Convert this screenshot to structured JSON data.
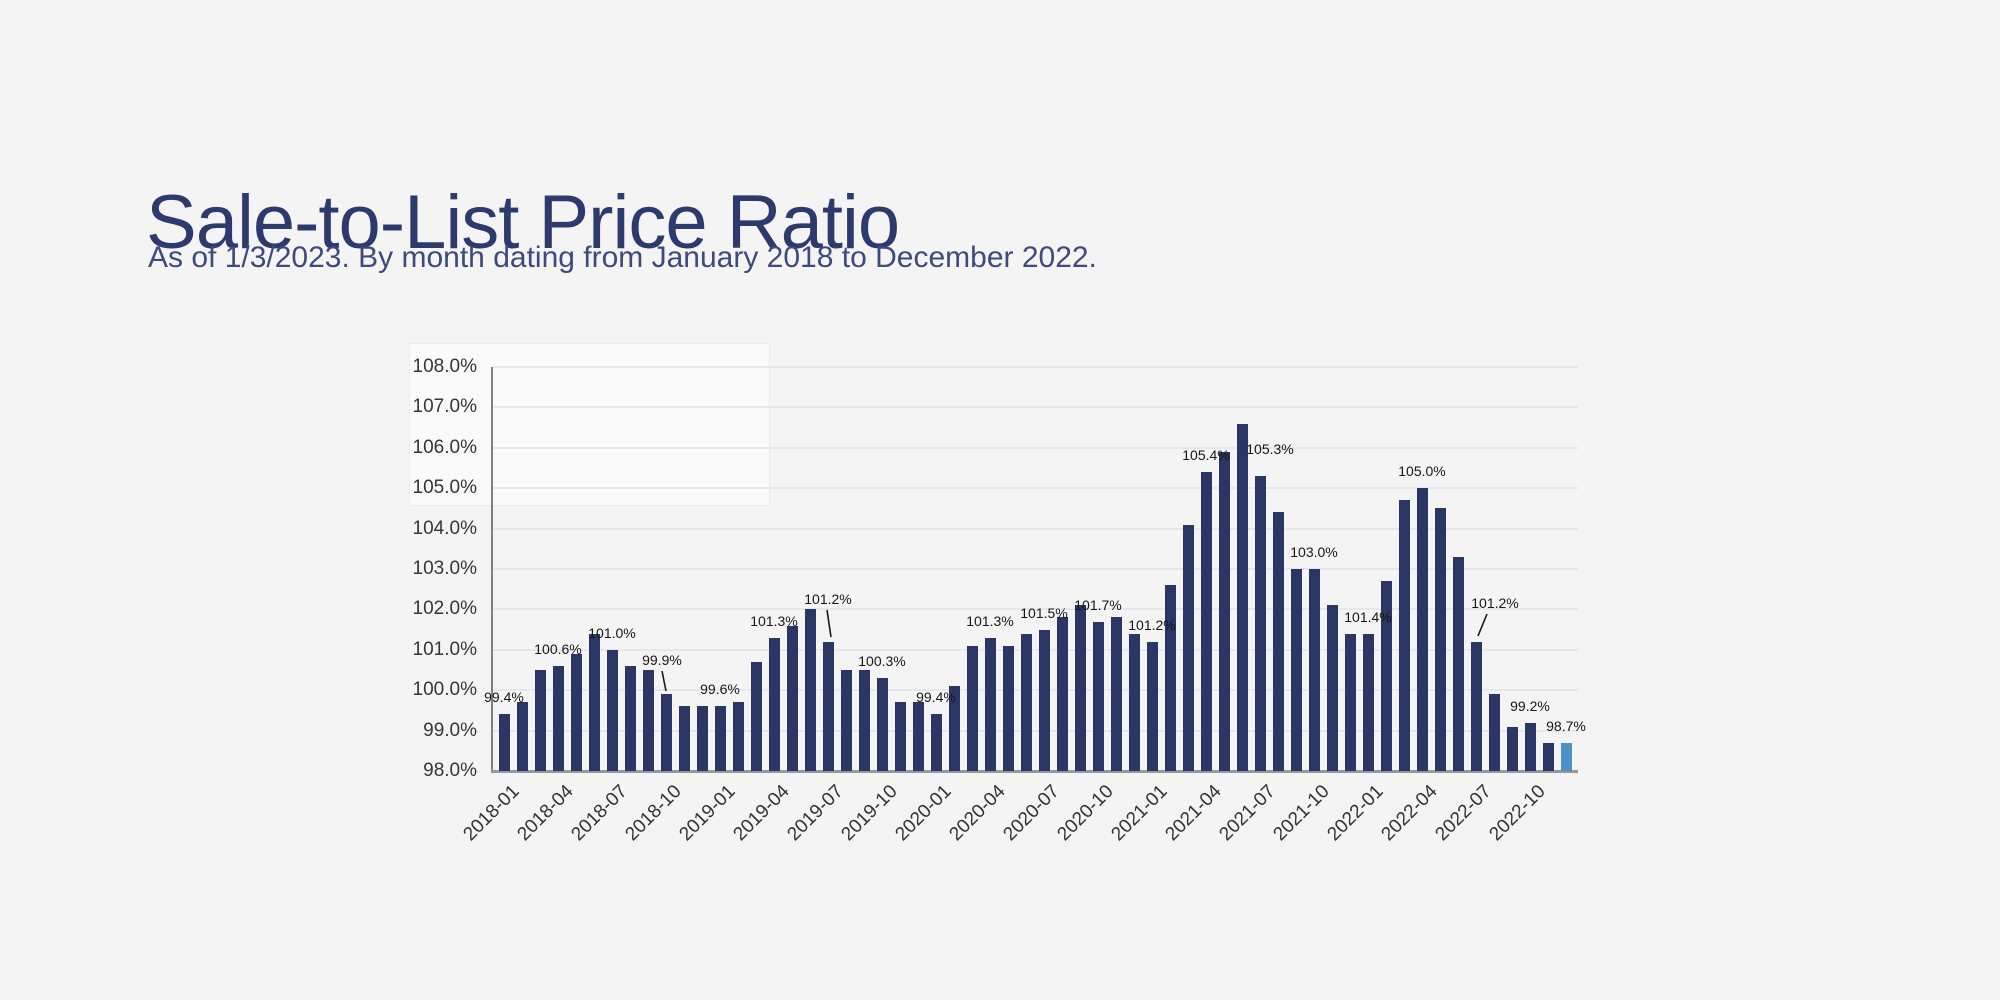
{
  "page": {
    "title": "Sale-to-List Price Ratio",
    "subtitle": "As of 1/3/2023. By month dating from January 2018 to December 2022."
  },
  "colors": {
    "background": "#f4f4f5",
    "title_color": "#2d3a6e",
    "subtitle_color": "#3d4a7e",
    "bar_color": "#2a3765",
    "highlight_bar_color": "#4d91c9",
    "gridline_color": "#e4e7ee",
    "axis_spine_color": "#7f7f85",
    "baseline_color": "#96969b",
    "tick_label_color": "#363636",
    "data_label_color": "#161616",
    "leader_line_color": "#1a1a1a"
  },
  "chart_data": {
    "type": "bar",
    "title": "Sale-to-List Price Ratio",
    "subtitle": "As of 1/3/2023. By month dating from January 2018 to December 2022.",
    "xlabel": "",
    "ylabel": "",
    "ylim": [
      98.0,
      108.0
    ],
    "ytick_step": 1.0,
    "grid": "horizontal",
    "legend": "none",
    "x": [
      "2018-01",
      "2018-02",
      "2018-03",
      "2018-04",
      "2018-05",
      "2018-06",
      "2018-07",
      "2018-08",
      "2018-09",
      "2018-10",
      "2018-11",
      "2018-12",
      "2019-01",
      "2019-02",
      "2019-03",
      "2019-04",
      "2019-05",
      "2019-06",
      "2019-07",
      "2019-08",
      "2019-09",
      "2019-10",
      "2019-11",
      "2019-12",
      "2020-01",
      "2020-02",
      "2020-03",
      "2020-04",
      "2020-05",
      "2020-06",
      "2020-07",
      "2020-08",
      "2020-09",
      "2020-10",
      "2020-11",
      "2020-12",
      "2021-01",
      "2021-02",
      "2021-03",
      "2021-04",
      "2021-05",
      "2021-06",
      "2021-07",
      "2021-08",
      "2021-09",
      "2021-10",
      "2021-11",
      "2021-12",
      "2022-01",
      "2022-02",
      "2022-03",
      "2022-04",
      "2022-05",
      "2022-06",
      "2022-07",
      "2022-08",
      "2022-09",
      "2022-10",
      "2022-11",
      "2022-12"
    ],
    "values": [
      99.4,
      99.7,
      100.5,
      100.6,
      100.9,
      101.4,
      101.0,
      100.6,
      100.5,
      99.9,
      99.6,
      99.6,
      99.6,
      99.7,
      100.7,
      101.3,
      101.6,
      102.0,
      101.2,
      100.5,
      100.5,
      100.3,
      99.7,
      99.7,
      99.4,
      100.1,
      101.1,
      101.3,
      101.1,
      101.4,
      101.5,
      101.8,
      102.1,
      101.7,
      101.8,
      101.4,
      101.2,
      102.6,
      104.1,
      105.4,
      105.9,
      106.6,
      105.3,
      104.4,
      103.0,
      103.0,
      102.1,
      101.4,
      101.4,
      102.7,
      104.7,
      105.0,
      104.5,
      103.3,
      101.2,
      99.9,
      99.1,
      99.2,
      98.7,
      98.7
    ],
    "yticks": [
      "98.0%",
      "99.0%",
      "100.0%",
      "101.0%",
      "102.0%",
      "103.0%",
      "104.0%",
      "105.0%",
      "106.0%",
      "107.0%",
      "108.0%"
    ],
    "xticks": [
      "2018-01",
      "2018-04",
      "2018-07",
      "2018-10",
      "2019-01",
      "2019-04",
      "2019-07",
      "2019-10",
      "2020-01",
      "2020-04",
      "2020-07",
      "2020-10",
      "2021-01",
      "2021-04",
      "2021-07",
      "2021-10",
      "2022-01",
      "2022-04",
      "2022-07",
      "2022-10"
    ],
    "xtick_every": 3,
    "data_labels": [
      {
        "index": 0,
        "text": "99.4%"
      },
      {
        "index": 3,
        "text": "100.6%"
      },
      {
        "index": 6,
        "text": "101.0%"
      },
      {
        "index": 9,
        "text": "99.9%"
      },
      {
        "index": 12,
        "text": "99.6%"
      },
      {
        "index": 15,
        "text": "101.3%"
      },
      {
        "index": 18,
        "text": "101.2%"
      },
      {
        "index": 21,
        "text": "100.3%"
      },
      {
        "index": 24,
        "text": "99.4%"
      },
      {
        "index": 27,
        "text": "101.3%"
      },
      {
        "index": 30,
        "text": "101.5%"
      },
      {
        "index": 33,
        "text": "101.7%"
      },
      {
        "index": 36,
        "text": "101.2%"
      },
      {
        "index": 39,
        "text": "105.4%"
      },
      {
        "index": 42,
        "text": "105.3%"
      },
      {
        "index": 45,
        "text": "103.0%"
      },
      {
        "index": 48,
        "text": "101.4%"
      },
      {
        "index": 51,
        "text": "105.0%"
      },
      {
        "index": 54,
        "text": "101.2%"
      },
      {
        "index": 57,
        "text": "99.2%"
      },
      {
        "index": 59,
        "text": "98.7%"
      }
    ],
    "highlight": {
      "index": 59,
      "month": "2022-12",
      "value": 98.7
    }
  }
}
